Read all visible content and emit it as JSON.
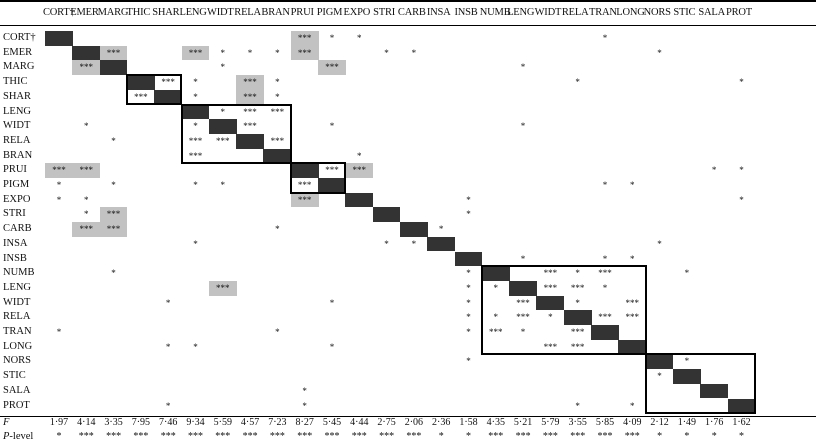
{
  "columns": [
    "CORT†",
    "EMER",
    "MARG",
    "THIC",
    "SHAR",
    "LENG",
    "WIDT",
    "RELA",
    "BRAN",
    "PRUI",
    "PIGM",
    "EXPO",
    "STRI",
    "CARB",
    "INSA",
    "INSB",
    "NUMB",
    "LENG",
    "WIDT",
    "RELA",
    "TRAN",
    "LONG",
    "NORS",
    "STIC",
    "SALA",
    "PROT"
  ],
  "rows": [
    "CORT†",
    "EMER",
    "MARG",
    "THIC",
    "SHAR",
    "LENG",
    "WIDT",
    "RELA",
    "BRAN",
    "PRUI",
    "PIGM",
    "EXPO",
    "STRI",
    "CARB",
    "INSA",
    "INSB",
    "NUMB",
    "LENG",
    "WIDT",
    "RELA",
    "TRAN",
    "LONG",
    "NORS",
    "STIC",
    "SALA",
    "PROT"
  ],
  "cells": [
    [
      0,
      9,
      "***",
      "grey"
    ],
    [
      0,
      10,
      "*",
      ""
    ],
    [
      0,
      11,
      "*",
      ""
    ],
    [
      0,
      20,
      "*",
      ""
    ],
    [
      1,
      2,
      "***",
      "grey"
    ],
    [
      1,
      5,
      "***",
      "grey"
    ],
    [
      1,
      6,
      "*",
      ""
    ],
    [
      1,
      7,
      "*",
      ""
    ],
    [
      1,
      8,
      "*",
      ""
    ],
    [
      1,
      9,
      "***",
      "grey"
    ],
    [
      1,
      12,
      "*",
      ""
    ],
    [
      1,
      13,
      "*",
      ""
    ],
    [
      1,
      22,
      "*",
      ""
    ],
    [
      2,
      1,
      "***",
      "grey"
    ],
    [
      2,
      6,
      "*",
      ""
    ],
    [
      2,
      10,
      "***",
      "grey"
    ],
    [
      2,
      17,
      "*",
      ""
    ],
    [
      3,
      4,
      "***",
      ""
    ],
    [
      3,
      5,
      "*",
      ""
    ],
    [
      3,
      7,
      "***",
      "grey"
    ],
    [
      3,
      8,
      "*",
      ""
    ],
    [
      3,
      19,
      "*",
      ""
    ],
    [
      3,
      25,
      "*",
      ""
    ],
    [
      4,
      3,
      "***",
      ""
    ],
    [
      4,
      5,
      "*",
      ""
    ],
    [
      4,
      7,
      "***",
      "grey"
    ],
    [
      4,
      8,
      "*",
      ""
    ],
    [
      5,
      6,
      "*",
      ""
    ],
    [
      5,
      7,
      "***",
      ""
    ],
    [
      5,
      8,
      "***",
      ""
    ],
    [
      6,
      1,
      "*",
      ""
    ],
    [
      6,
      5,
      "*",
      ""
    ],
    [
      6,
      7,
      "***",
      ""
    ],
    [
      6,
      10,
      "*",
      ""
    ],
    [
      6,
      17,
      "*",
      ""
    ],
    [
      7,
      2,
      "*",
      ""
    ],
    [
      7,
      5,
      "***",
      ""
    ],
    [
      7,
      6,
      "***",
      ""
    ],
    [
      7,
      8,
      "***",
      ""
    ],
    [
      8,
      5,
      "***",
      ""
    ],
    [
      8,
      11,
      "*",
      ""
    ],
    [
      9,
      0,
      "***",
      "grey"
    ],
    [
      9,
      1,
      "***",
      "grey"
    ],
    [
      9,
      10,
      "***",
      ""
    ],
    [
      9,
      11,
      "***",
      "grey"
    ],
    [
      9,
      24,
      "*",
      ""
    ],
    [
      9,
      25,
      "*",
      ""
    ],
    [
      10,
      0,
      "*",
      ""
    ],
    [
      10,
      2,
      "*",
      ""
    ],
    [
      10,
      5,
      "*",
      ""
    ],
    [
      10,
      6,
      "*",
      ""
    ],
    [
      10,
      9,
      "***",
      ""
    ],
    [
      10,
      20,
      "*",
      ""
    ],
    [
      10,
      21,
      "*",
      ""
    ],
    [
      11,
      0,
      "*",
      ""
    ],
    [
      11,
      1,
      "*",
      ""
    ],
    [
      11,
      9,
      "***",
      "grey"
    ],
    [
      11,
      15,
      "*",
      ""
    ],
    [
      11,
      25,
      "*",
      ""
    ],
    [
      12,
      1,
      "*",
      ""
    ],
    [
      12,
      2,
      "***",
      "grey"
    ],
    [
      12,
      15,
      "*",
      ""
    ],
    [
      13,
      1,
      "***",
      "grey"
    ],
    [
      13,
      2,
      "***",
      "grey"
    ],
    [
      13,
      8,
      "*",
      ""
    ],
    [
      13,
      14,
      "*",
      ""
    ],
    [
      14,
      5,
      "*",
      ""
    ],
    [
      14,
      12,
      "*",
      ""
    ],
    [
      14,
      13,
      "*",
      ""
    ],
    [
      14,
      22,
      "*",
      ""
    ],
    [
      15,
      17,
      "*",
      ""
    ],
    [
      15,
      20,
      "*",
      ""
    ],
    [
      15,
      21,
      "*",
      ""
    ],
    [
      16,
      2,
      "*",
      ""
    ],
    [
      16,
      15,
      "*",
      ""
    ],
    [
      16,
      18,
      "***",
      ""
    ],
    [
      16,
      19,
      "*",
      ""
    ],
    [
      16,
      20,
      "***",
      ""
    ],
    [
      16,
      23,
      "*",
      ""
    ],
    [
      17,
      6,
      "***",
      "grey"
    ],
    [
      17,
      15,
      "*",
      ""
    ],
    [
      17,
      16,
      "*",
      ""
    ],
    [
      17,
      18,
      "***",
      ""
    ],
    [
      17,
      19,
      "***",
      ""
    ],
    [
      17,
      20,
      "*",
      ""
    ],
    [
      18,
      4,
      "*",
      ""
    ],
    [
      18,
      10,
      "*",
      ""
    ],
    [
      18,
      15,
      "*",
      ""
    ],
    [
      18,
      17,
      "***",
      ""
    ],
    [
      18,
      19,
      "*",
      ""
    ],
    [
      18,
      21,
      "***",
      ""
    ],
    [
      19,
      15,
      "*",
      ""
    ],
    [
      19,
      16,
      "*",
      ""
    ],
    [
      19,
      17,
      "***",
      ""
    ],
    [
      19,
      18,
      "*",
      ""
    ],
    [
      19,
      20,
      "***",
      ""
    ],
    [
      19,
      21,
      "***",
      ""
    ],
    [
      20,
      0,
      "*",
      ""
    ],
    [
      20,
      8,
      "*",
      ""
    ],
    [
      20,
      15,
      "*",
      ""
    ],
    [
      20,
      16,
      "***",
      ""
    ],
    [
      20,
      17,
      "*",
      ""
    ],
    [
      20,
      19,
      "***",
      ""
    ],
    [
      21,
      4,
      "*",
      ""
    ],
    [
      21,
      5,
      "*",
      ""
    ],
    [
      21,
      10,
      "*",
      ""
    ],
    [
      21,
      18,
      "***",
      ""
    ],
    [
      21,
      19,
      "***",
      ""
    ],
    [
      22,
      15,
      "*",
      ""
    ],
    [
      22,
      23,
      "*",
      ""
    ],
    [
      23,
      22,
      "*",
      ""
    ],
    [
      24,
      9,
      "*",
      ""
    ],
    [
      25,
      4,
      "*",
      ""
    ],
    [
      25,
      9,
      "*",
      ""
    ],
    [
      25,
      19,
      "*",
      ""
    ],
    [
      25,
      21,
      "*",
      ""
    ]
  ],
  "boxes": [
    [
      3,
      4
    ],
    [
      5,
      8
    ],
    [
      9,
      10
    ],
    [
      16,
      21
    ],
    [
      22,
      25
    ]
  ],
  "f_label": "F",
  "p_label": "P-level",
  "f_values": [
    "1·97",
    "4·14",
    "3·35",
    "7·95",
    "7·46",
    "9·34",
    "5·59",
    "4·57",
    "7·23",
    "8·27",
    "5·45",
    "4·44",
    "2·75",
    "2·06",
    "2·36",
    "1·58",
    "4·35",
    "5·21",
    "5·79",
    "3·55",
    "5·85",
    "4·09",
    "2·12",
    "1·49",
    "1·76",
    "1·62"
  ],
  "p_values": [
    "*",
    "***",
    "***",
    "***",
    "***",
    "***",
    "***",
    "***",
    "***",
    "***",
    "***",
    "***",
    "***",
    "***",
    "*",
    "*",
    "***",
    "***",
    "***",
    "***",
    "***",
    "***",
    "*",
    "*",
    "*",
    "*"
  ]
}
